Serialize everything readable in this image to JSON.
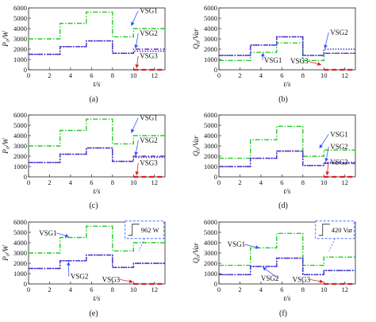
{
  "figure": {
    "panel_captions": [
      "(a)",
      "(b)",
      "(c)",
      "(d)",
      "(e)",
      "(f)"
    ]
  },
  "colors": {
    "VSG1": "#22cc22",
    "VSG2": "#7a1fbf",
    "VSG3_solid": "#1f3fd6",
    "VSG3_dash": "#e02020",
    "annotation_box": "#3355ff",
    "arrow": "#3355ff"
  },
  "chart_data": [
    {
      "type": "line",
      "caption": "(a)",
      "ylabel": "P₀/W",
      "xlabel": "t/s",
      "xlim": [
        0,
        13
      ],
      "ylim": [
        0,
        6000
      ],
      "xticks": [
        0,
        2,
        4,
        6,
        8,
        10,
        12
      ],
      "yticks": [
        0,
        1000,
        2000,
        3000,
        4000,
        5000,
        6000
      ],
      "series": [
        {
          "name": "VSG1",
          "style": "dashdot",
          "color_key": "VSG1",
          "x": [
            0,
            3,
            3,
            5.5,
            5.5,
            8,
            8,
            10,
            10,
            13
          ],
          "y": [
            3000,
            3000,
            4500,
            4500,
            5600,
            5600,
            3200,
            3200,
            4000,
            4000
          ]
        },
        {
          "name": "VSG2",
          "style": "dashdot",
          "color_key": "VSG2",
          "x": [
            0,
            3,
            3,
            5.5,
            5.5,
            8,
            8,
            10,
            10,
            13
          ],
          "y": [
            1500,
            1500,
            2250,
            2250,
            2800,
            2800,
            1600,
            1600,
            2000,
            2000
          ]
        },
        {
          "name": "VSG3",
          "style": "dotted",
          "color_key": "VSG3_solid",
          "x": [
            0,
            3,
            3,
            5.5,
            5.5,
            8,
            8,
            10,
            10,
            13
          ],
          "y": [
            1500,
            1500,
            2250,
            2250,
            2800,
            2800,
            1600,
            1600,
            1800,
            1800
          ]
        },
        {
          "name": "VSG3 (off)",
          "style": "dashed",
          "color_key": "VSG3_dash",
          "x": [
            10,
            13
          ],
          "y": [
            0,
            0
          ]
        }
      ],
      "labels": [
        {
          "text": "VSG1",
          "x": 10.6,
          "y": 5500,
          "tx": 9.8,
          "ty": 4300
        },
        {
          "text": "VSG2",
          "x": 10.6,
          "y": 3300,
          "tx": 10.2,
          "ty": 2100
        },
        {
          "text": "VSG3",
          "x": 10.6,
          "y": 1100,
          "tx": 10.3,
          "ty": 200
        }
      ]
    },
    {
      "type": "line",
      "caption": "(b)",
      "ylabel": "Q₀/Var",
      "xlabel": "t/s",
      "xlim": [
        0,
        13
      ],
      "ylim": [
        0,
        6000
      ],
      "xticks": [
        0,
        2,
        4,
        6,
        8,
        10,
        12
      ],
      "yticks": [
        0,
        1000,
        2000,
        3000,
        4000,
        5000,
        6000
      ],
      "series": [
        {
          "name": "VSG1",
          "style": "dashdot",
          "color_key": "VSG1",
          "x": [
            0,
            3,
            3,
            5.5,
            5.5,
            8,
            8,
            10,
            10,
            13
          ],
          "y": [
            900,
            900,
            1700,
            1700,
            2600,
            2600,
            900,
            900,
            1600,
            1600
          ]
        },
        {
          "name": "VSG2",
          "style": "dashdot",
          "color_key": "VSG2",
          "x": [
            0,
            3,
            3,
            5.5,
            5.5,
            8,
            8,
            10,
            10,
            13
          ],
          "y": [
            1400,
            1400,
            2400,
            2400,
            3200,
            3200,
            1400,
            1400,
            1600,
            1600
          ]
        },
        {
          "name": "VSG3",
          "style": "dotted",
          "color_key": "VSG3_solid",
          "x": [
            0,
            3,
            3,
            5.5,
            5.5,
            8,
            8,
            10,
            10,
            13
          ],
          "y": [
            1400,
            1400,
            2400,
            2400,
            3200,
            3200,
            1400,
            1400,
            2000,
            2000
          ]
        },
        {
          "name": "VSG3 (off)",
          "style": "dashed",
          "color_key": "VSG3_dash",
          "x": [
            10,
            13
          ],
          "y": [
            0,
            0
          ]
        }
      ],
      "labels": [
        {
          "text": "VSG1",
          "x": 4.3,
          "y": 700,
          "tx": 4.2,
          "ty": 1600
        },
        {
          "text": "VSG2",
          "x": 10.6,
          "y": 3400,
          "tx": 10.1,
          "ty": 2100
        },
        {
          "text": "VSG3",
          "x": 6.8,
          "y": 600,
          "tx": 9.7,
          "ty": 500
        }
      ]
    },
    {
      "type": "line",
      "caption": "(c)",
      "ylabel": "P₀/W",
      "xlabel": "t/s",
      "xlim": [
        0,
        13
      ],
      "ylim": [
        0,
        6000
      ],
      "xticks": [
        0,
        2,
        4,
        6,
        8,
        10,
        12
      ],
      "yticks": [
        0,
        1000,
        2000,
        3000,
        4000,
        5000,
        6000
      ],
      "series": [
        {
          "name": "VSG1",
          "style": "dashdot",
          "color_key": "VSG1",
          "x": [
            0,
            3,
            3,
            5.5,
            5.5,
            8,
            8,
            10,
            10,
            13
          ],
          "y": [
            3000,
            3000,
            4500,
            4500,
            5600,
            5600,
            3200,
            3200,
            4000,
            4000
          ]
        },
        {
          "name": "VSG2",
          "style": "dashdot",
          "color_key": "VSG2",
          "x": [
            0,
            3,
            3,
            5.5,
            5.5,
            8,
            8,
            10,
            10,
            13
          ],
          "y": [
            1400,
            1400,
            2200,
            2200,
            2800,
            2800,
            1500,
            1500,
            2000,
            2000
          ]
        },
        {
          "name": "VSG3",
          "style": "dotted",
          "color_key": "VSG3_solid",
          "x": [
            0,
            3,
            3,
            5.5,
            5.5,
            8,
            8,
            10,
            10,
            13
          ],
          "y": [
            1400,
            1400,
            2200,
            2200,
            2800,
            2800,
            1500,
            1500,
            1900,
            1900
          ]
        },
        {
          "name": "VSG3 (off)",
          "style": "dashed",
          "color_key": "VSG3_dash",
          "x": [
            10,
            13
          ],
          "y": [
            0,
            0
          ]
        }
      ],
      "labels": [
        {
          "text": "VSG1",
          "x": 10.6,
          "y": 5500,
          "tx": 9.8,
          "ty": 4300
        },
        {
          "text": "VSG2",
          "x": 10.6,
          "y": 3300,
          "tx": 10.2,
          "ty": 2100
        },
        {
          "text": "VSG3",
          "x": 10.6,
          "y": 1100,
          "tx": 10.3,
          "ty": 200
        }
      ]
    },
    {
      "type": "line",
      "caption": "(d)",
      "ylabel": "Q₀/Var",
      "xlabel": "t/s",
      "xlim": [
        0,
        13
      ],
      "ylim": [
        0,
        6000
      ],
      "xticks": [
        0,
        2,
        4,
        6,
        8,
        10,
        12
      ],
      "yticks": [
        0,
        1000,
        2000,
        3000,
        4000,
        5000,
        6000
      ],
      "series": [
        {
          "name": "VSG1",
          "style": "dashdot",
          "color_key": "VSG1",
          "x": [
            0,
            3,
            3,
            5.5,
            5.5,
            8,
            8,
            10,
            10,
            13
          ],
          "y": [
            1800,
            1800,
            3600,
            3600,
            4900,
            4900,
            2000,
            2000,
            2600,
            2600
          ]
        },
        {
          "name": "VSG2",
          "style": "dashdot",
          "color_key": "VSG2",
          "x": [
            0,
            3,
            3,
            5.5,
            5.5,
            8,
            8,
            10,
            10,
            13
          ],
          "y": [
            1000,
            1000,
            1800,
            1800,
            2500,
            2500,
            1100,
            1100,
            1300,
            1300
          ]
        },
        {
          "name": "VSG3",
          "style": "dotted",
          "color_key": "VSG3_solid",
          "x": [
            0,
            3,
            3,
            5.5,
            5.5,
            8,
            8,
            10,
            10,
            13
          ],
          "y": [
            1000,
            1000,
            1800,
            1800,
            2500,
            2500,
            1100,
            1100,
            1400,
            1400
          ]
        },
        {
          "name": "VSG3 (off)",
          "style": "dashed",
          "color_key": "VSG3_dash",
          "x": [
            10,
            13
          ],
          "y": [
            0,
            0
          ]
        }
      ],
      "labels": [
        {
          "text": "VSG1",
          "x": 10.6,
          "y": 3900,
          "tx": 9.6,
          "ty": 2800
        },
        {
          "text": "VSG2",
          "x": 10.6,
          "y": 2700,
          "tx": 10.2,
          "ty": 1500
        },
        {
          "text": "VSG3",
          "x": 10.6,
          "y": 1200,
          "tx": 10.3,
          "ty": 200
        }
      ]
    },
    {
      "type": "line",
      "caption": "(e)",
      "ylabel": "P₀/W",
      "xlabel": "t/s",
      "xlim": [
        0,
        13
      ],
      "ylim": [
        0,
        6000
      ],
      "xticks": [
        0,
        2,
        4,
        6,
        8,
        10,
        12
      ],
      "yticks": [
        0,
        1000,
        2000,
        3000,
        4000,
        5000,
        6000
      ],
      "series": [
        {
          "name": "VSG1",
          "style": "dashdot",
          "color_key": "VSG1",
          "x": [
            0,
            3,
            3,
            5.5,
            5.5,
            8,
            8,
            10,
            10,
            13
          ],
          "y": [
            3000,
            3000,
            4500,
            4500,
            5600,
            5600,
            3200,
            3200,
            4000,
            4000
          ]
        },
        {
          "name": "VSG2",
          "style": "dashdot",
          "color_key": "VSG2",
          "x": [
            0,
            3,
            3,
            5.5,
            5.5,
            8,
            8,
            10,
            10,
            13
          ],
          "y": [
            1500,
            1500,
            2250,
            2250,
            2800,
            2800,
            1600,
            1600,
            2000,
            2000
          ]
        },
        {
          "name": "VSG3",
          "style": "dotted",
          "color_key": "VSG3_solid",
          "x": [
            0,
            3,
            3,
            5.5,
            5.5,
            8,
            8,
            10,
            10,
            13
          ],
          "y": [
            1500,
            1500,
            2250,
            2250,
            2800,
            2800,
            1600,
            1600,
            2000,
            2000
          ]
        },
        {
          "name": "VSG3 (off)",
          "style": "dashed",
          "color_key": "VSG3_dash",
          "x": [
            10,
            13
          ],
          "y": [
            0,
            0
          ]
        }
      ],
      "labels": [
        {
          "text": "VSG1",
          "x": 1.0,
          "y": 4700,
          "tx": 3.8,
          "ty": 4600
        },
        {
          "text": "VSG2",
          "x": 4.0,
          "y": 500,
          "tx": 3.8,
          "ty": 2100
        },
        {
          "text": "VSG3",
          "x": 7.0,
          "y": 200,
          "tx": 9.9,
          "ty": 200
        }
      ],
      "inset_annotation": "962 W"
    },
    {
      "type": "line",
      "caption": "(f)",
      "ylabel": "Q₀/Var",
      "xlabel": "t/s",
      "xlim": [
        0,
        13
      ],
      "ylim": [
        0,
        6000
      ],
      "xticks": [
        0,
        2,
        4,
        6,
        8,
        10,
        12
      ],
      "yticks": [
        0,
        1000,
        2000,
        3000,
        4000,
        5000,
        6000
      ],
      "series": [
        {
          "name": "VSG1",
          "style": "dashdot",
          "color_key": "VSG1",
          "x": [
            0,
            3,
            3,
            5.5,
            5.5,
            8,
            8,
            10,
            10,
            13
          ],
          "y": [
            1800,
            1800,
            3500,
            3500,
            4900,
            4900,
            1800,
            1800,
            2600,
            2600
          ]
        },
        {
          "name": "VSG2",
          "style": "dashdot",
          "color_key": "VSG2",
          "x": [
            0,
            3,
            3,
            5.5,
            5.5,
            8,
            8,
            10,
            10,
            13
          ],
          "y": [
            900,
            900,
            1700,
            1700,
            2500,
            2500,
            900,
            900,
            1300,
            1300
          ]
        },
        {
          "name": "VSG3",
          "style": "dotted",
          "color_key": "VSG3_solid",
          "x": [
            0,
            3,
            3,
            5.5,
            5.5,
            8,
            8,
            10,
            10,
            13
          ],
          "y": [
            900,
            900,
            1700,
            1700,
            2500,
            2500,
            900,
            900,
            1300,
            1300
          ]
        },
        {
          "name": "VSG3 (off)",
          "style": "dashed",
          "color_key": "VSG3_dash",
          "x": [
            10,
            13
          ],
          "y": [
            0,
            0
          ]
        }
      ],
      "labels": [
        {
          "text": "VSG1",
          "x": 0.8,
          "y": 3600,
          "tx": 3.8,
          "ty": 3500
        },
        {
          "text": "VSG2",
          "x": 4.0,
          "y": 300,
          "tx": 4.2,
          "ty": 1600
        },
        {
          "text": "VSG3",
          "x": 7.0,
          "y": 200,
          "tx": 9.9,
          "ty": 200
        }
      ],
      "inset_annotation": "420 Var"
    }
  ]
}
